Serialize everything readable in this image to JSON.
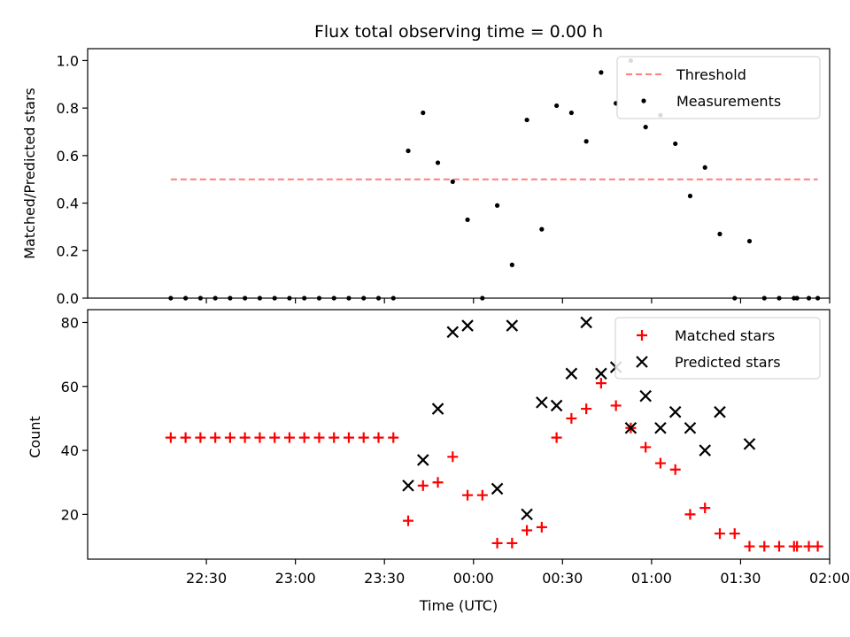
{
  "chart_data": [
    {
      "type": "scatter",
      "title": "Flux total observing time = 0.00 h",
      "xlabel": "",
      "ylabel": "Matched/Predicted stars",
      "ylim": [
        0,
        1.05
      ],
      "yticks": [
        "0.0",
        "0.2",
        "0.4",
        "0.6",
        "0.8",
        "1.0"
      ],
      "ytick_values": [
        0,
        0.2,
        0.4,
        0.6,
        0.8,
        1.0
      ],
      "xlim": [
        -14,
        111
      ],
      "grid": false,
      "legend_position": "top-right",
      "threshold": {
        "name": "Threshold",
        "value": 0.5,
        "x_range": [
          0,
          109
        ],
        "color": "#ff7f7f"
      },
      "series": [
        {
          "name": "Measurements",
          "color": "#000000",
          "x": [
            0,
            2.5,
            5,
            7.5,
            10,
            12.5,
            15,
            17.5,
            20,
            22.5,
            25,
            27.5,
            30,
            32.5,
            35,
            37.5,
            40,
            42.5,
            45,
            47.5,
            50,
            52.5,
            55,
            57.5,
            60,
            62.5,
            65,
            67.5,
            70,
            72.5,
            75,
            77.5,
            80,
            82.5,
            85,
            87.5,
            90,
            92.5,
            95,
            97.5,
            100,
            102.5,
            105,
            105.5,
            107.5,
            109
          ],
          "y": [
            0,
            0,
            0,
            0,
            0,
            0,
            0,
            0,
            0,
            0,
            0,
            0,
            0,
            0,
            0,
            0,
            0.62,
            0.78,
            0.57,
            0.49,
            0.33,
            0,
            0.39,
            0.14,
            0.75,
            0.29,
            0.81,
            0.78,
            0.66,
            0.95,
            0.82,
            1.0,
            0.72,
            0.77,
            0.65,
            0.43,
            0.55,
            0.27,
            0,
            0.24,
            0,
            0,
            0,
            0,
            0,
            0
          ]
        }
      ]
    },
    {
      "type": "scatter",
      "title": "",
      "xlabel": "Time (UTC)",
      "ylabel": "Count",
      "ylim": [
        6,
        84
      ],
      "yticks": [
        "20",
        "40",
        "60",
        "80"
      ],
      "ytick_values": [
        20,
        40,
        60,
        80
      ],
      "xlim": [
        -14,
        111
      ],
      "xticks": [
        "22:30",
        "23:00",
        "23:30",
        "00:00",
        "00:30",
        "01:00",
        "01:30",
        "02:00"
      ],
      "xtick_values": [
        6,
        21,
        36,
        51,
        66,
        81,
        96,
        111
      ],
      "grid": false,
      "legend_position": "top-right",
      "series": [
        {
          "name": "Matched stars",
          "color": "#ff0000",
          "x": [
            0,
            2.5,
            5,
            7.5,
            10,
            12.5,
            15,
            17.5,
            20,
            22.5,
            25,
            27.5,
            30,
            32.5,
            35,
            37.5,
            40,
            42.5,
            45,
            47.5,
            50,
            52.5,
            55,
            57.5,
            60,
            62.5,
            65,
            67.5,
            70,
            72.5,
            75,
            77.5,
            80,
            82.5,
            85,
            87.5,
            90,
            92.5,
            95,
            97.5,
            100,
            102.5,
            105,
            105.5,
            107.5,
            109
          ],
          "y": [
            44,
            44,
            44,
            44,
            44,
            44,
            44,
            44,
            44,
            44,
            44,
            44,
            44,
            44,
            44,
            44,
            18,
            29,
            30,
            38,
            26,
            26,
            11,
            11,
            15,
            16,
            44,
            50,
            53,
            61,
            54,
            47,
            41,
            36,
            34,
            20,
            22,
            14,
            14,
            10,
            10,
            10,
            10,
            10,
            10,
            10
          ]
        },
        {
          "name": "Predicted stars",
          "color": "#000000",
          "x": [
            40,
            42.5,
            45,
            47.5,
            50,
            55,
            57.5,
            60,
            62.5,
            65,
            67.5,
            70,
            72.5,
            75,
            77.5,
            80,
            82.5,
            85,
            87.5,
            90,
            92.5,
            97.5
          ],
          "y": [
            29,
            37,
            53,
            77,
            79,
            28,
            79,
            20,
            55,
            54,
            64,
            80,
            64,
            66,
            47,
            57,
            47,
            52,
            47,
            40,
            52,
            42
          ]
        }
      ]
    }
  ]
}
